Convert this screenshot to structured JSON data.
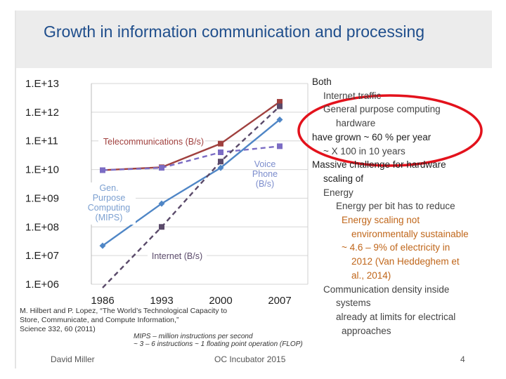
{
  "slide": {
    "title": "Growth in information communication and processing",
    "footer_left": "David Miller",
    "footer_center": "OC Incubator 2015",
    "footer_right": "4"
  },
  "citation": {
    "lines": [
      "M. Hilbert and P. Lopez, “The World’s Technological Capacity to",
      "Store, Communicate, and Compute Information,”",
      "Science 332, 60 (2011)"
    ]
  },
  "mips_note": {
    "lines": [
      "MIPS – million instructions per second",
      "~ 3 – 6 instructions ~ 1 floating point operation (FLOP)"
    ]
  },
  "right_text": [
    {
      "text": "Both",
      "color": "#1f1f1f",
      "indent": 0
    },
    {
      "text": "Internet traffic",
      "color": "#444444",
      "indent": 1
    },
    {
      "text": "General purpose computing",
      "color": "#444444",
      "indent": 1
    },
    {
      "text": "hardware",
      "color": "#444444",
      "indent": 2
    },
    {
      "text": "have grown ~ 60 % per year",
      "color": "#1f1f1f",
      "indent": 0
    },
    {
      "text": "~ X 100 in 10 years",
      "color": "#444444",
      "indent": 1
    },
    {
      "text": "Massive challenge for hardware",
      "color": "#1f1f1f",
      "indent": 0
    },
    {
      "text": "scaling of",
      "color": "#1f1f1f",
      "indent": 1
    },
    {
      "text": "Energy",
      "color": "#444444",
      "indent": 1
    },
    {
      "text": "Energy per bit has to reduce",
      "color": "#444444",
      "indent": 2
    },
    {
      "text": "Energy scaling not",
      "color": "#c0661a",
      "indent": 3
    },
    {
      "text": "environmentally sustainable",
      "color": "#c0661a",
      "indent": 4
    },
    {
      "text": "~ 4.6 – 9% of electricity in",
      "color": "#c0661a",
      "indent": 3
    },
    {
      "text": "2012 (Van Heddeghem et",
      "color": "#c0661a",
      "indent": 4
    },
    {
      "text": "al., 2014)",
      "color": "#c0661a",
      "indent": 4
    },
    {
      "text": "Communication density inside",
      "color": "#444444",
      "indent": 1
    },
    {
      "text": "systems",
      "color": "#444444",
      "indent": 2
    },
    {
      "text": "already at limits for electrical",
      "color": "#444444",
      "indent": 2
    },
    {
      "text": "approaches",
      "color": "#444444",
      "indent": 3
    }
  ],
  "highlight_color": "#e3121c",
  "chart_data": {
    "type": "line",
    "title": "",
    "xlabel": "",
    "ylabel": "",
    "y_scale": "log",
    "ylim": [
      1000000.0,
      10000000000000.0
    ],
    "y_tick_labels": [
      "1.E+13",
      "1.E+12",
      "1.E+11",
      "1.E+10",
      "1.E+09",
      "1.E+08",
      "1.E+07",
      "1.E+06"
    ],
    "y_tick_values": [
      10000000000000.0,
      1000000000000.0,
      100000000000.0,
      10000000000.0,
      1000000000.0,
      100000000.0,
      10000000.0,
      1000000.0
    ],
    "categories": [
      "1986",
      "1993",
      "2000",
      "2007"
    ],
    "grid": true,
    "series": [
      {
        "name": "Telecommunications (B/s)",
        "style": "solid-line-square",
        "color": "#a0403e",
        "values": [
          9500000000.0,
          12000000000.0,
          80000000000.0,
          2300000000000.0
        ]
      },
      {
        "name": "Voice Phone (B/s)",
        "style": "dashed-line-square",
        "color": "#7b6cc4",
        "values": [
          9500000000.0,
          11500000000.0,
          40000000000.0,
          65000000000.0
        ]
      },
      {
        "name": "Gen. Purpose Computing (MIPS)",
        "style": "solid-line-diamond",
        "color": "#4f86c6",
        "values": [
          22000000.0,
          650000000.0,
          11500000000.0,
          550000000000.0
        ]
      },
      {
        "name": "Internet (B/s)",
        "style": "dashed-line-square",
        "color": "#5a4a6a",
        "values": [
          300000.0,
          100000000.0,
          19000000000.0,
          1600000000000.0
        ]
      }
    ],
    "series_labels": [
      {
        "text": "Telecommunications (B/s)",
        "color": "#a0403e"
      },
      {
        "text": "Voice\nPhone\n(B/s)",
        "color": "#7b8ccc"
      },
      {
        "text": "Gen.\nPurpose\nComputing\n(MIPS)",
        "color": "#7b9fd0"
      },
      {
        "text": "Internet (B/s)",
        "color": "#5a4a6a"
      }
    ]
  }
}
